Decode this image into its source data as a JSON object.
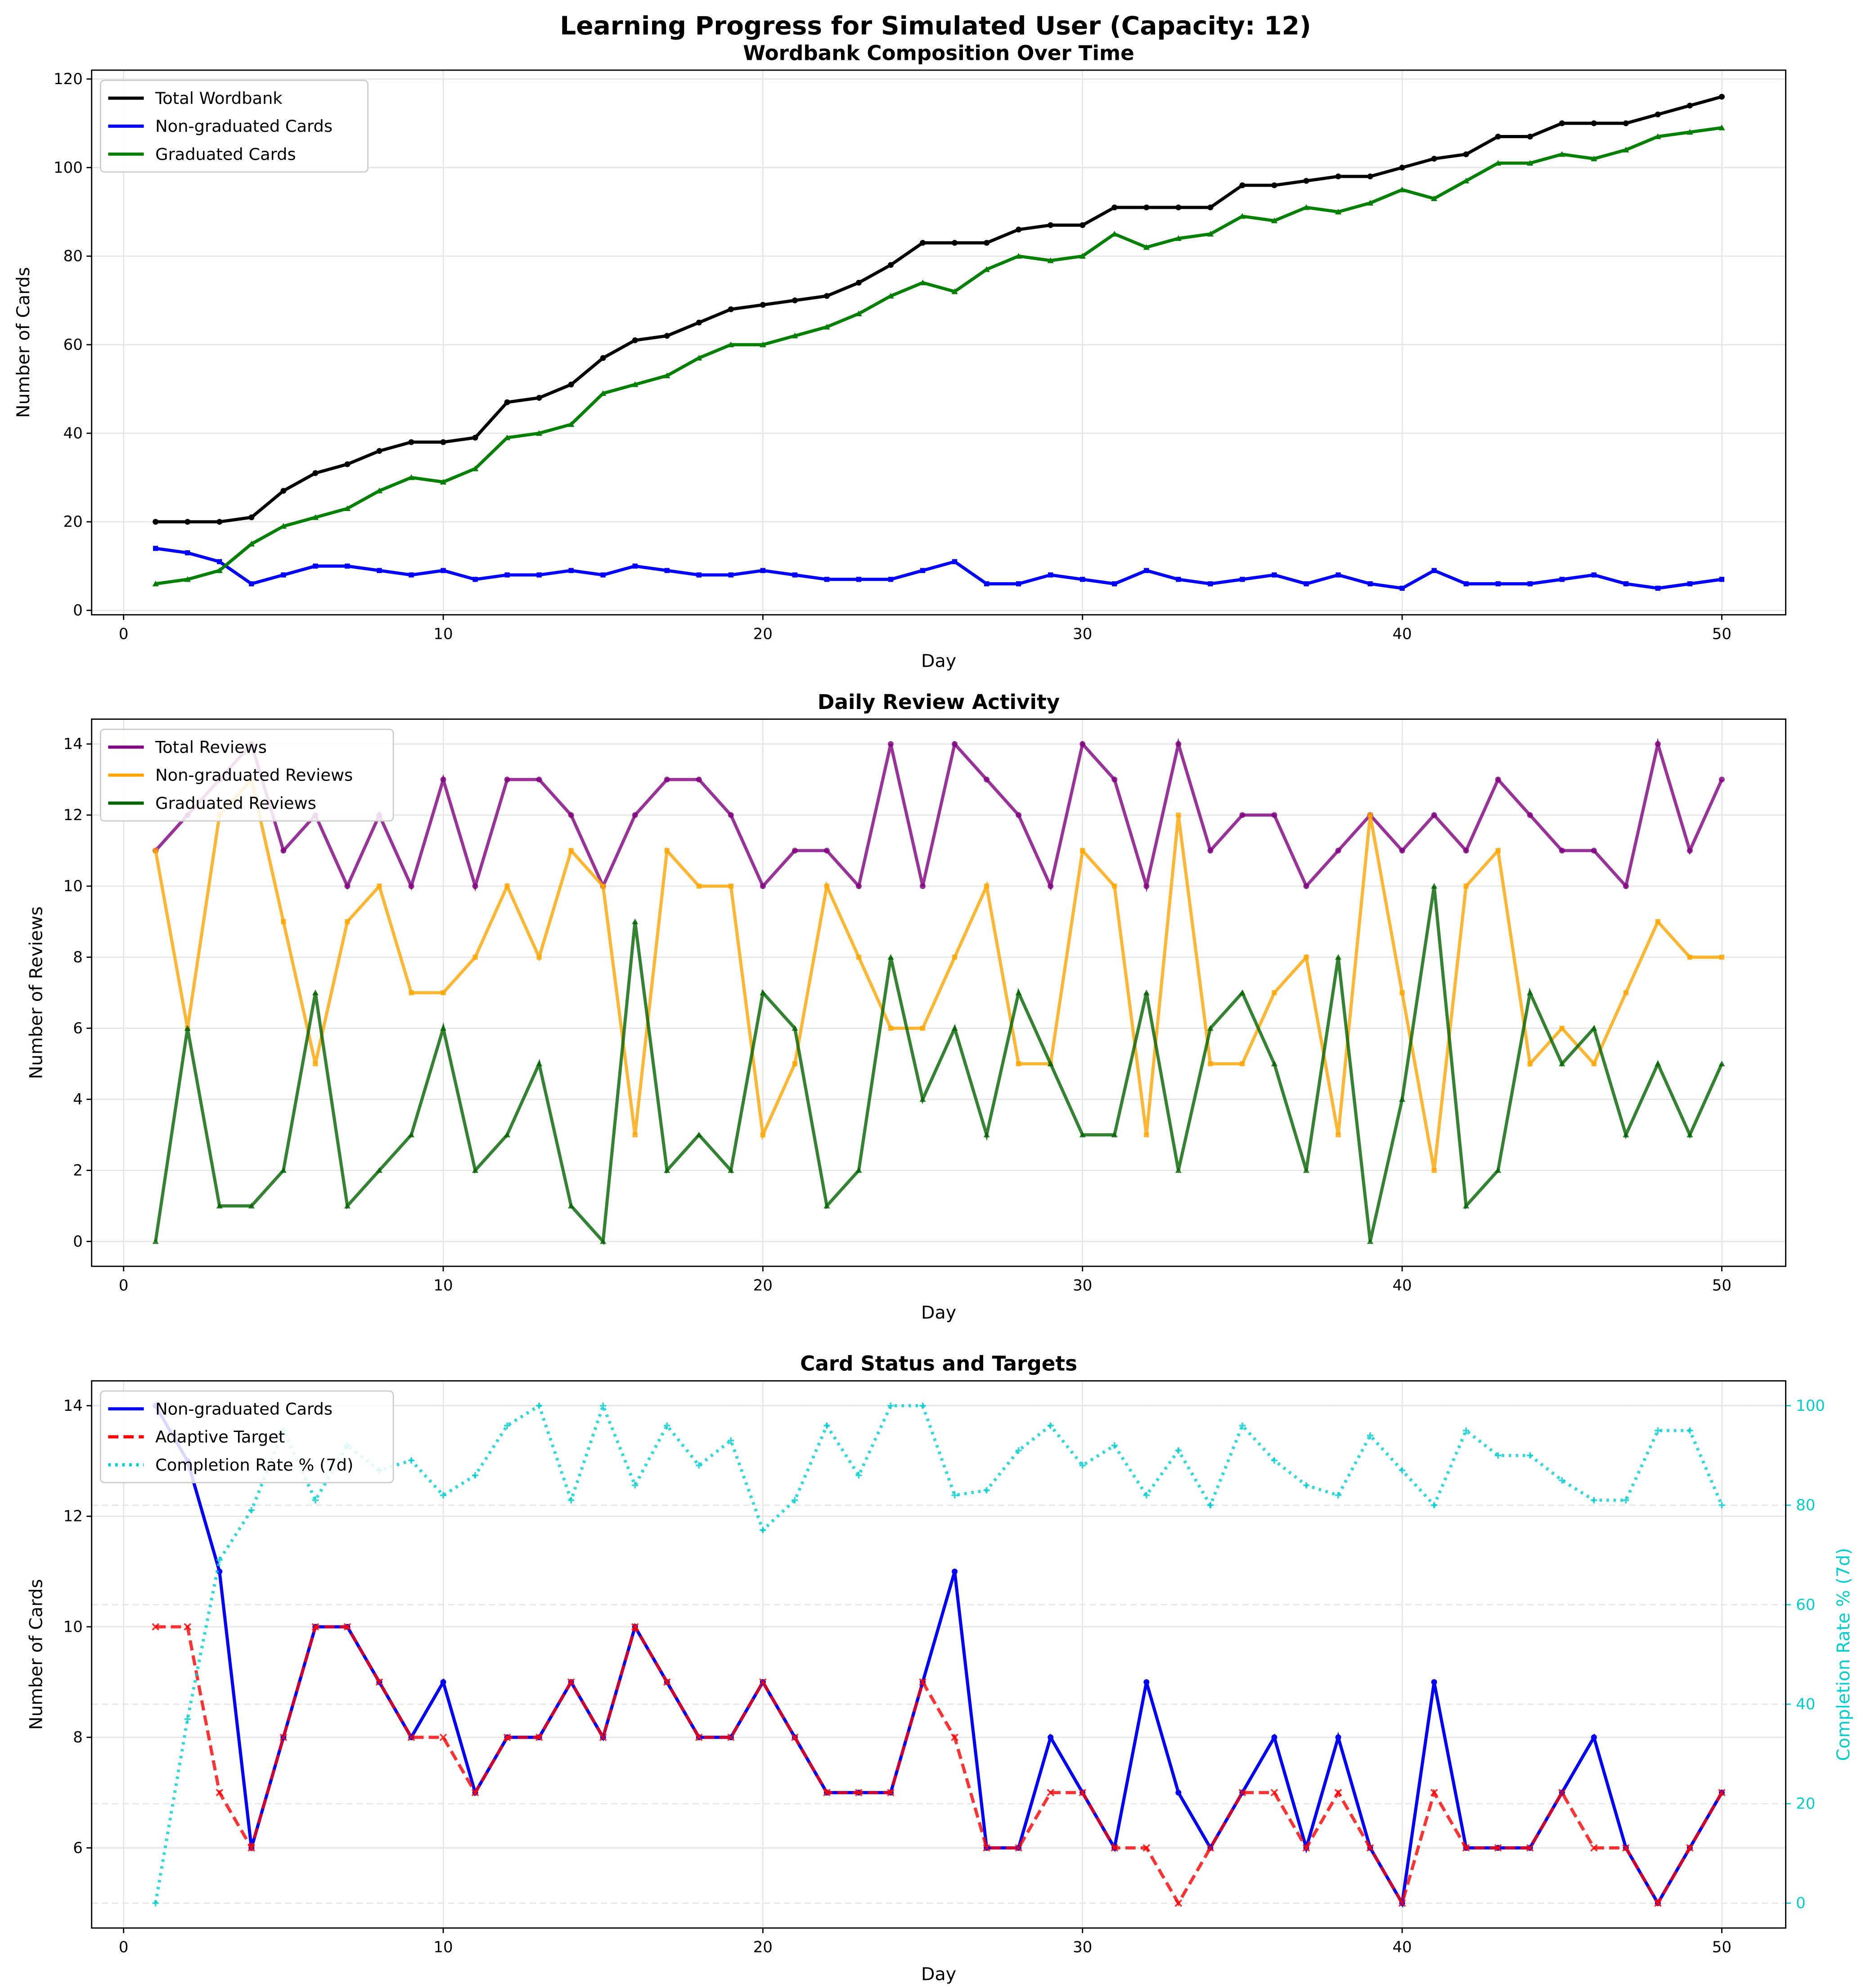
{
  "title": "Learning Progress for Simulated User (Capacity: 12)",
  "chart_data": [
    {
      "type": "line",
      "title": "Wordbank Composition Over Time",
      "xlabel": "Day",
      "ylabel": "Number of Cards",
      "xlim": [
        -1,
        52
      ],
      "ylim": [
        -1,
        122
      ],
      "xticks": [
        0,
        10,
        20,
        30,
        40,
        50
      ],
      "yticks": [
        0,
        20,
        40,
        60,
        80,
        100,
        120
      ],
      "grid": true,
      "legend": "top-left",
      "x": [
        1,
        2,
        3,
        4,
        5,
        6,
        7,
        8,
        9,
        10,
        11,
        12,
        13,
        14,
        15,
        16,
        17,
        18,
        19,
        20,
        21,
        22,
        23,
        24,
        25,
        26,
        27,
        28,
        29,
        30,
        31,
        32,
        33,
        34,
        35,
        36,
        37,
        38,
        39,
        40,
        41,
        42,
        43,
        44,
        45,
        46,
        47,
        48,
        49,
        50
      ],
      "series": [
        {
          "name": "Total Wordbank",
          "color": "#000000",
          "style": "solid",
          "marker": "o",
          "values": [
            20,
            20,
            20,
            21,
            27,
            31,
            33,
            36,
            38,
            38,
            39,
            47,
            48,
            51,
            57,
            61,
            62,
            65,
            68,
            69,
            70,
            71,
            74,
            78,
            83,
            83,
            83,
            86,
            87,
            87,
            91,
            91,
            91,
            91,
            96,
            96,
            97,
            98,
            98,
            100,
            102,
            103,
            107,
            107,
            110,
            110,
            110,
            112,
            114,
            116
          ]
        },
        {
          "name": "Non-graduated Cards",
          "color": "#0000ff",
          "style": "solid",
          "marker": "s",
          "values": [
            14,
            13,
            11,
            6,
            8,
            10,
            10,
            9,
            8,
            9,
            7,
            8,
            8,
            9,
            8,
            10,
            9,
            8,
            8,
            9,
            8,
            7,
            7,
            7,
            9,
            11,
            6,
            6,
            8,
            7,
            6,
            9,
            7,
            6,
            7,
            8,
            6,
            8,
            6,
            5,
            9,
            6,
            6,
            6,
            7,
            8,
            6,
            5,
            6,
            7
          ]
        },
        {
          "name": "Graduated Cards",
          "color": "#008000",
          "style": "solid",
          "marker": "^",
          "values": [
            6,
            7,
            9,
            15,
            19,
            21,
            23,
            27,
            30,
            29,
            32,
            39,
            40,
            42,
            49,
            51,
            53,
            57,
            60,
            60,
            62,
            64,
            67,
            71,
            74,
            72,
            77,
            80,
            79,
            80,
            85,
            82,
            84,
            85,
            89,
            88,
            91,
            90,
            92,
            95,
            93,
            97,
            101,
            101,
            103,
            102,
            104,
            107,
            108,
            109
          ]
        }
      ]
    },
    {
      "type": "line",
      "title": "Daily Review Activity",
      "xlabel": "Day",
      "ylabel": "Number of Reviews",
      "xlim": [
        -1,
        52
      ],
      "ylim": [
        -0.7,
        14.7
      ],
      "xticks": [
        0,
        10,
        20,
        30,
        40,
        50
      ],
      "yticks": [
        0,
        2,
        4,
        6,
        8,
        10,
        12,
        14
      ],
      "grid": true,
      "legend": "top-left",
      "x": [
        1,
        2,
        3,
        4,
        5,
        6,
        7,
        8,
        9,
        10,
        11,
        12,
        13,
        14,
        15,
        16,
        17,
        18,
        19,
        20,
        21,
        22,
        23,
        24,
        25,
        26,
        27,
        28,
        29,
        30,
        31,
        32,
        33,
        34,
        35,
        36,
        37,
        38,
        39,
        40,
        41,
        42,
        43,
        44,
        45,
        46,
        47,
        48,
        49,
        50
      ],
      "series": [
        {
          "name": "Total Reviews",
          "color": "#800080",
          "style": "solid",
          "marker": "o",
          "values": [
            11,
            12,
            13,
            14,
            11,
            12,
            10,
            12,
            10,
            13,
            10,
            13,
            13,
            12,
            10,
            12,
            13,
            13,
            12,
            10,
            11,
            11,
            10,
            14,
            10,
            14,
            13,
            12,
            10,
            14,
            13,
            10,
            14,
            11,
            12,
            12,
            10,
            11,
            12,
            11,
            12,
            11,
            13,
            12,
            11,
            11,
            10,
            14,
            11,
            13
          ]
        },
        {
          "name": "Non-graduated Reviews",
          "color": "#ffa500",
          "style": "solid",
          "marker": "s",
          "values": [
            11,
            6,
            12,
            13,
            9,
            5,
            9,
            10,
            7,
            7,
            8,
            10,
            8,
            11,
            10,
            3,
            11,
            10,
            10,
            3,
            5,
            10,
            8,
            6,
            6,
            8,
            10,
            5,
            5,
            11,
            10,
            3,
            12,
            5,
            5,
            7,
            8,
            3,
            12,
            7,
            2,
            10,
            11,
            5,
            6,
            5,
            7,
            9,
            8,
            8
          ]
        },
        {
          "name": "Graduated Reviews",
          "color": "#006400",
          "style": "solid",
          "marker": "^",
          "values": [
            0,
            6,
            1,
            1,
            2,
            7,
            1,
            2,
            3,
            6,
            2,
            3,
            5,
            1,
            0,
            9,
            2,
            3,
            2,
            7,
            6,
            1,
            2,
            8,
            4,
            6,
            3,
            7,
            5,
            3,
            3,
            7,
            2,
            6,
            7,
            5,
            2,
            8,
            0,
            4,
            10,
            1,
            2,
            7,
            5,
            6,
            3,
            5,
            3,
            5
          ]
        }
      ]
    },
    {
      "type": "line",
      "title": "Card Status and Targets",
      "xlabel": "Day",
      "ylabel": "Number of Cards",
      "ylabel_right": "Completion Rate % (7d)",
      "xlim": [
        -1,
        52
      ],
      "ylim": [
        4.55,
        14.45
      ],
      "ylim_right": [
        -5,
        105
      ],
      "xticks": [
        0,
        10,
        20,
        30,
        40,
        50
      ],
      "yticks": [
        6,
        8,
        10,
        12,
        14
      ],
      "yticks_right": [
        0,
        20,
        40,
        60,
        80,
        100
      ],
      "grid": true,
      "legend": "top-left",
      "x": [
        1,
        2,
        3,
        4,
        5,
        6,
        7,
        8,
        9,
        10,
        11,
        12,
        13,
        14,
        15,
        16,
        17,
        18,
        19,
        20,
        21,
        22,
        23,
        24,
        25,
        26,
        27,
        28,
        29,
        30,
        31,
        32,
        33,
        34,
        35,
        36,
        37,
        38,
        39,
        40,
        41,
        42,
        43,
        44,
        45,
        46,
        47,
        48,
        49,
        50
      ],
      "series": [
        {
          "name": "Non-graduated Cards",
          "color": "#0000ff",
          "style": "solid",
          "marker": "o",
          "axis": "left",
          "values": [
            14,
            13,
            11,
            6,
            8,
            10,
            10,
            9,
            8,
            9,
            7,
            8,
            8,
            9,
            8,
            10,
            9,
            8,
            8,
            9,
            8,
            7,
            7,
            7,
            9,
            11,
            6,
            6,
            8,
            7,
            6,
            9,
            7,
            6,
            7,
            8,
            6,
            8,
            6,
            5,
            9,
            6,
            6,
            6,
            7,
            8,
            6,
            5,
            6,
            7
          ]
        },
        {
          "name": "Adaptive Target",
          "color": "#ff0000",
          "style": "dashed",
          "marker": "x",
          "axis": "left",
          "values": [
            10,
            10,
            7,
            6,
            8,
            10,
            10,
            9,
            8,
            8,
            7,
            8,
            8,
            9,
            8,
            10,
            9,
            8,
            8,
            9,
            8,
            7,
            7,
            7,
            9,
            8,
            6,
            6,
            7,
            7,
            6,
            6,
            5,
            6,
            7,
            7,
            6,
            7,
            6,
            5,
            7,
            6,
            6,
            6,
            7,
            6,
            6,
            5,
            6,
            7
          ]
        },
        {
          "name": "Completion Rate % (7d)",
          "color": "#00ced1",
          "style": "dotted",
          "marker": "+",
          "axis": "right",
          "values": [
            0,
            37,
            69,
            79,
            95,
            81,
            92,
            87,
            89,
            82,
            86,
            96,
            100,
            81,
            100,
            84,
            96,
            88,
            93,
            75,
            81,
            96,
            86,
            100,
            100,
            82,
            83,
            91,
            96,
            88,
            92,
            82,
            91,
            80,
            96,
            89,
            84,
            82,
            94,
            87,
            80,
            95,
            90,
            90,
            85,
            81,
            81,
            95,
            95,
            80
          ]
        }
      ]
    }
  ]
}
